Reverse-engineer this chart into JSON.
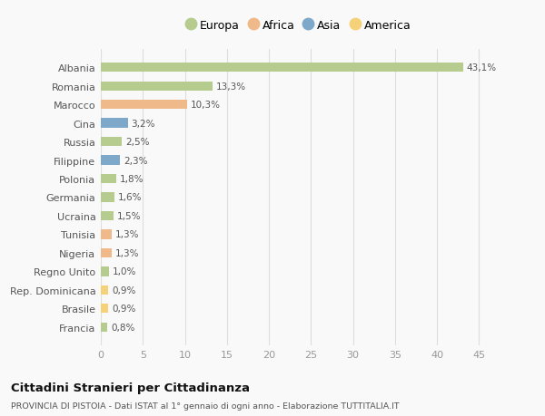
{
  "categories": [
    "Albania",
    "Romania",
    "Marocco",
    "Cina",
    "Russia",
    "Filippine",
    "Polonia",
    "Germania",
    "Ucraina",
    "Tunisia",
    "Nigeria",
    "Regno Unito",
    "Rep. Dominicana",
    "Brasile",
    "Francia"
  ],
  "values": [
    43.1,
    13.3,
    10.3,
    3.2,
    2.5,
    2.3,
    1.8,
    1.6,
    1.5,
    1.3,
    1.3,
    1.0,
    0.9,
    0.9,
    0.8
  ],
  "labels": [
    "43,1%",
    "13,3%",
    "10,3%",
    "3,2%",
    "2,5%",
    "2,3%",
    "1,8%",
    "1,6%",
    "1,5%",
    "1,3%",
    "1,3%",
    "1,0%",
    "0,9%",
    "0,9%",
    "0,8%"
  ],
  "continents": [
    "Europa",
    "Europa",
    "Africa",
    "Asia",
    "Europa",
    "Asia",
    "Europa",
    "Europa",
    "Europa",
    "Africa",
    "Africa",
    "Europa",
    "America",
    "America",
    "Europa"
  ],
  "colors": {
    "Europa": "#b5cc8e",
    "Africa": "#f0b98a",
    "Asia": "#7ea8c9",
    "America": "#f5d27a"
  },
  "legend_order": [
    "Europa",
    "Africa",
    "Asia",
    "America"
  ],
  "title": "Cittadini Stranieri per Cittadinanza",
  "subtitle": "PROVINCIA DI PISTOIA - Dati ISTAT al 1° gennaio di ogni anno - Elaborazione TUTTITALIA.IT",
  "xlim": [
    0,
    47
  ],
  "xticks": [
    0,
    5,
    10,
    15,
    20,
    25,
    30,
    35,
    40,
    45
  ],
  "background_color": "#f9f9f9",
  "grid_color": "#dddddd",
  "bar_height": 0.5
}
